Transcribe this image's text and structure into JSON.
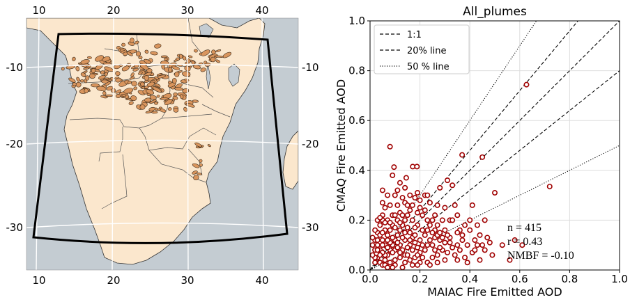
{
  "map": {
    "top_lon_ticks": [
      "10",
      "20",
      "30",
      "40"
    ],
    "bottom_lon_ticks": [
      "10",
      "20",
      "30",
      "40"
    ],
    "left_lat_ticks": [
      "-10",
      "-20",
      "-30"
    ],
    "right_lat_ticks": [
      "-10",
      "-20",
      "-30"
    ],
    "colors": {
      "ocean": "#c4ccd2",
      "land": "#fbe7cd",
      "fire": "#d9955d",
      "frame": "#000000",
      "grid": "#ffffff"
    }
  },
  "chart_data": {
    "type": "scatter",
    "title": "All_plumes",
    "xlabel": "MAIAC Fire Emitted AOD",
    "ylabel": "CMAQ Fire Emitted AOD",
    "xlim": [
      0.0,
      1.0
    ],
    "ylim": [
      0.0,
      1.0
    ],
    "xticks": [
      "0.0",
      "0.2",
      "0.4",
      "0.6",
      "0.8",
      "1.0"
    ],
    "yticks": [
      "0.0",
      "0.2",
      "0.4",
      "0.6",
      "0.8",
      "1.0"
    ],
    "grid": true,
    "legend_position": "top-left",
    "legend": [
      {
        "label": "1:1",
        "style": "dashed"
      },
      {
        "label": "20% line",
        "style": "dashed"
      },
      {
        "label": "50 % line",
        "style": "dotted"
      }
    ],
    "stats": {
      "n": "n = 415",
      "r": "r = 0.43",
      "nmbf": "NMBF = -0.10"
    },
    "marker_color": "#a00000",
    "points": [
      [
        0.627,
        0.744
      ],
      [
        0.72,
        0.335
      ],
      [
        0.369,
        0.462
      ],
      [
        0.45,
        0.453
      ],
      [
        0.08,
        0.495
      ],
      [
        0.096,
        0.413
      ],
      [
        0.171,
        0.415
      ],
      [
        0.188,
        0.415
      ],
      [
        0.09,
        0.38
      ],
      [
        0.145,
        0.37
      ],
      [
        0.12,
        0.35
      ],
      [
        0.05,
        0.32
      ],
      [
        0.22,
        0.3
      ],
      [
        0.19,
        0.31
      ],
      [
        0.31,
        0.36
      ],
      [
        0.33,
        0.34
      ],
      [
        0.34,
        0.26
      ],
      [
        0.3,
        0.25
      ],
      [
        0.28,
        0.33
      ],
      [
        0.5,
        0.31
      ],
      [
        0.41,
        0.26
      ],
      [
        0.4,
        0.2
      ],
      [
        0.36,
        0.16
      ],
      [
        0.35,
        0.15
      ],
      [
        0.44,
        0.14
      ],
      [
        0.47,
        0.13
      ],
      [
        0.45,
        0.1
      ],
      [
        0.43,
        0.1
      ],
      [
        0.39,
        0.1
      ],
      [
        0.32,
        0.13
      ],
      [
        0.28,
        0.12
      ],
      [
        0.26,
        0.13
      ],
      [
        0.3,
        0.16
      ],
      [
        0.27,
        0.18
      ],
      [
        0.25,
        0.2
      ],
      [
        0.24,
        0.27
      ],
      [
        0.21,
        0.22
      ],
      [
        0.2,
        0.25
      ],
      [
        0.18,
        0.29
      ],
      [
        0.16,
        0.24
      ],
      [
        0.14,
        0.27
      ],
      [
        0.13,
        0.29
      ],
      [
        0.1,
        0.3
      ],
      [
        0.07,
        0.3
      ],
      [
        0.06,
        0.25
      ],
      [
        0.11,
        0.26
      ],
      [
        0.12,
        0.23
      ],
      [
        0.09,
        0.22
      ],
      [
        0.05,
        0.2
      ],
      [
        0.04,
        0.18
      ],
      [
        0.03,
        0.15
      ],
      [
        0.02,
        0.12
      ],
      [
        0.01,
        0.1
      ],
      [
        0.02,
        0.08
      ],
      [
        0.03,
        0.05
      ],
      [
        0.04,
        0.03
      ],
      [
        0.05,
        0.02
      ],
      [
        0.06,
        0.04
      ],
      [
        0.07,
        0.06
      ],
      [
        0.08,
        0.08
      ],
      [
        0.09,
        0.1
      ],
      [
        0.1,
        0.12
      ],
      [
        0.11,
        0.14
      ],
      [
        0.12,
        0.16
      ],
      [
        0.13,
        0.18
      ],
      [
        0.14,
        0.2
      ],
      [
        0.15,
        0.17
      ],
      [
        0.16,
        0.15
      ],
      [
        0.17,
        0.13
      ],
      [
        0.18,
        0.11
      ],
      [
        0.19,
        0.09
      ],
      [
        0.2,
        0.07
      ],
      [
        0.21,
        0.05
      ],
      [
        0.22,
        0.08
      ],
      [
        0.23,
        0.1
      ],
      [
        0.24,
        0.12
      ],
      [
        0.25,
        0.1
      ],
      [
        0.26,
        0.08
      ],
      [
        0.27,
        0.06
      ],
      [
        0.29,
        0.08
      ],
      [
        0.31,
        0.07
      ],
      [
        0.33,
        0.09
      ],
      [
        0.34,
        0.06
      ],
      [
        0.36,
        0.08
      ],
      [
        0.38,
        0.05
      ],
      [
        0.41,
        0.07
      ],
      [
        0.42,
        0.12
      ],
      [
        0.37,
        0.12
      ],
      [
        0.35,
        0.1
      ],
      [
        0.3,
        0.11
      ],
      [
        0.28,
        0.09
      ],
      [
        0.25,
        0.05
      ],
      [
        0.23,
        0.03
      ],
      [
        0.2,
        0.03
      ],
      [
        0.18,
        0.05
      ],
      [
        0.16,
        0.04
      ],
      [
        0.14,
        0.06
      ],
      [
        0.12,
        0.05
      ],
      [
        0.1,
        0.04
      ],
      [
        0.08,
        0.03
      ],
      [
        0.06,
        0.06
      ],
      [
        0.04,
        0.08
      ],
      [
        0.03,
        0.1
      ],
      [
        0.05,
        0.12
      ],
      [
        0.07,
        0.14
      ],
      [
        0.08,
        0.16
      ],
      [
        0.06,
        0.16
      ],
      [
        0.04,
        0.14
      ],
      [
        0.02,
        0.16
      ],
      [
        0.01,
        0.13
      ],
      [
        0.03,
        0.2
      ],
      [
        0.05,
        0.22
      ],
      [
        0.07,
        0.2
      ],
      [
        0.09,
        0.18
      ],
      [
        0.11,
        0.2
      ],
      [
        0.13,
        0.22
      ],
      [
        0.15,
        0.22
      ],
      [
        0.17,
        0.2
      ],
      [
        0.19,
        0.18
      ],
      [
        0.21,
        0.16
      ],
      [
        0.22,
        0.14
      ],
      [
        0.23,
        0.16
      ],
      [
        0.24,
        0.18
      ],
      [
        0.26,
        0.16
      ],
      [
        0.27,
        0.14
      ],
      [
        0.28,
        0.15
      ],
      [
        0.29,
        0.13
      ],
      [
        0.31,
        0.14
      ],
      [
        0.32,
        0.11
      ],
      [
        0.2,
        0.12
      ],
      [
        0.18,
        0.14
      ],
      [
        0.16,
        0.1
      ],
      [
        0.14,
        0.12
      ],
      [
        0.12,
        0.1
      ],
      [
        0.1,
        0.08
      ],
      [
        0.08,
        0.11
      ],
      [
        0.06,
        0.1
      ],
      [
        0.05,
        0.07
      ],
      [
        0.07,
        0.09
      ],
      [
        0.09,
        0.07
      ],
      [
        0.11,
        0.09
      ],
      [
        0.13,
        0.08
      ],
      [
        0.15,
        0.09
      ],
      [
        0.17,
        0.08
      ],
      [
        0.19,
        0.06
      ],
      [
        0.21,
        0.1
      ],
      [
        0.13,
        0.13
      ],
      [
        0.11,
        0.11
      ],
      [
        0.09,
        0.13
      ],
      [
        0.07,
        0.12
      ],
      [
        0.05,
        0.1
      ],
      [
        0.04,
        0.06
      ],
      [
        0.03,
        0.08
      ],
      [
        0.02,
        0.05
      ],
      [
        0.01,
        0.06
      ],
      [
        0.02,
        0.03
      ],
      [
        0.06,
        0.02
      ],
      [
        0.1,
        0.02
      ],
      [
        0.14,
        0.03
      ],
      [
        0.17,
        0.02
      ],
      [
        0.12,
        0.07
      ],
      [
        0.15,
        0.06
      ],
      [
        0.16,
        0.12
      ],
      [
        0.14,
        0.15
      ],
      [
        0.12,
        0.19
      ],
      [
        0.1,
        0.17
      ],
      [
        0.08,
        0.19
      ],
      [
        0.06,
        0.19
      ],
      [
        0.04,
        0.21
      ],
      [
        0.1,
        0.22
      ],
      [
        0.15,
        0.26
      ],
      [
        0.17,
        0.26
      ],
      [
        0.19,
        0.23
      ],
      [
        0.22,
        0.24
      ],
      [
        0.26,
        0.22
      ],
      [
        0.29,
        0.2
      ],
      [
        0.23,
        0.2
      ],
      [
        0.08,
        0.26
      ],
      [
        0.05,
        0.27
      ],
      [
        0.11,
        0.32
      ],
      [
        0.14,
        0.33
      ],
      [
        0.16,
        0.3
      ],
      [
        0.2,
        0.28
      ],
      [
        0.23,
        0.3
      ],
      [
        0.27,
        0.26
      ],
      [
        0.32,
        0.2
      ],
      [
        0.35,
        0.22
      ],
      [
        0.38,
        0.18
      ],
      [
        0.4,
        0.16
      ],
      [
        0.43,
        0.18
      ],
      [
        0.46,
        0.2
      ],
      [
        0.53,
        0.1
      ],
      [
        0.58,
        0.12
      ],
      [
        0.61,
        0.1
      ],
      [
        0.49,
        0.06
      ],
      [
        0.56,
        0.04
      ],
      [
        0.44,
        0.04
      ],
      [
        0.39,
        0.03
      ],
      [
        0.35,
        0.04
      ],
      [
        0.3,
        0.04
      ],
      [
        0.27,
        0.03
      ],
      [
        0.24,
        0.02
      ],
      [
        0.19,
        0.02
      ],
      [
        0.13,
        0.01
      ],
      [
        0.09,
        0.01
      ],
      [
        0.07,
        0.01
      ],
      [
        0.33,
        0.2
      ],
      [
        0.37,
        0.14
      ],
      [
        0.48,
        0.11
      ],
      [
        0.42,
        0.08
      ],
      [
        0.46,
        0.08
      ],
      [
        0.05,
        0.15
      ],
      [
        0.03,
        0.12
      ],
      [
        0.25,
        0.15
      ],
      [
        0.18,
        0.17
      ]
    ]
  }
}
